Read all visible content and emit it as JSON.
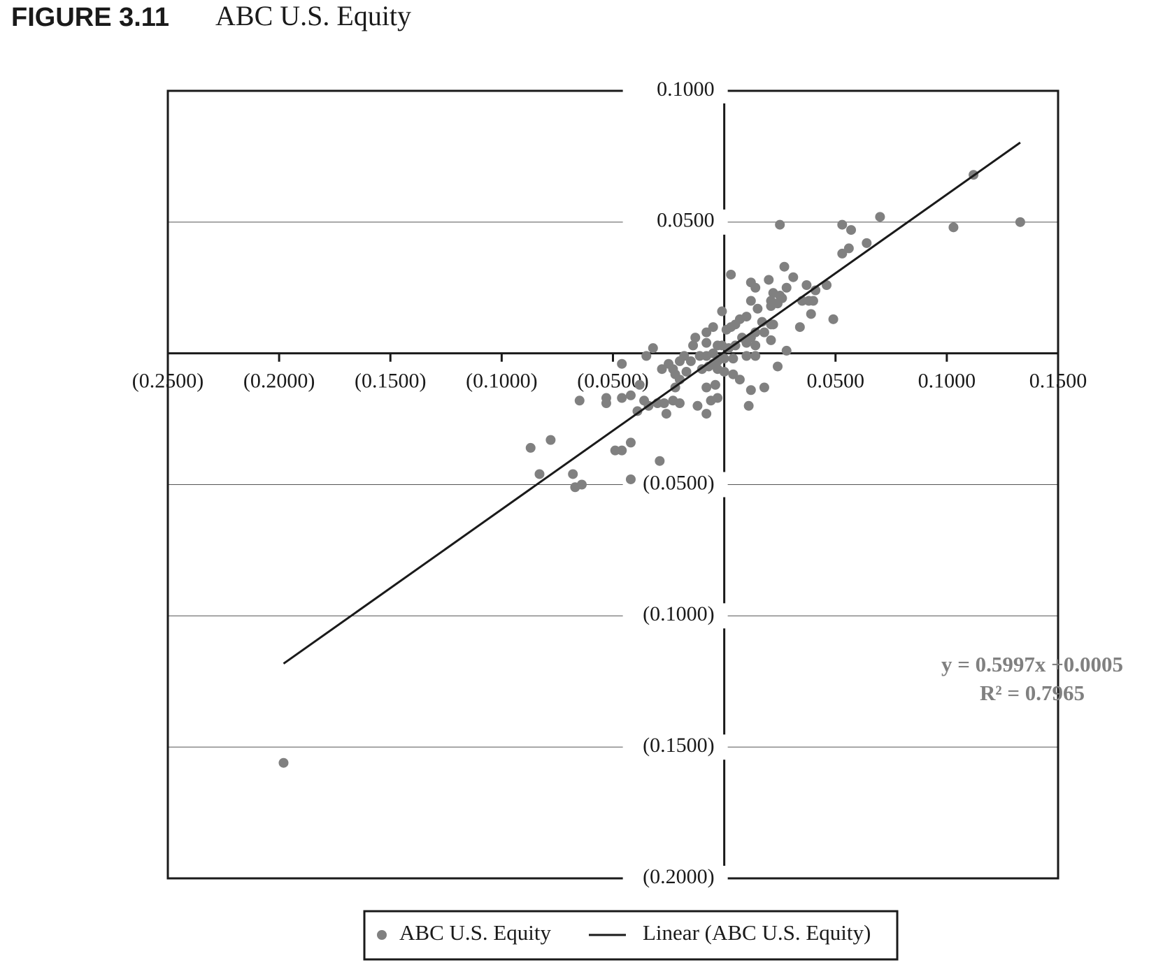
{
  "chart_data": {
    "type": "scatter",
    "figure_label": "FIGURE 3.11",
    "title": "ABC U.S. Equity",
    "xlim": [
      -0.25,
      0.15
    ],
    "ylim": [
      -0.2,
      0.1
    ],
    "xticks": [
      {
        "value": -0.25,
        "label": "(0.2500)"
      },
      {
        "value": -0.2,
        "label": "(0.2000)"
      },
      {
        "value": -0.15,
        "label": "(0.1500)"
      },
      {
        "value": -0.1,
        "label": "(0.1000)"
      },
      {
        "value": -0.05,
        "label": "(0.0500)"
      },
      {
        "value": 0.05,
        "label": "0.0500"
      },
      {
        "value": 0.1,
        "label": "0.1000"
      },
      {
        "value": 0.15,
        "label": "0.1500"
      }
    ],
    "yticks": [
      {
        "value": 0.1,
        "label": "0.1000"
      },
      {
        "value": 0.05,
        "label": "0.0500"
      },
      {
        "value": -0.05,
        "label": "(0.0500)"
      },
      {
        "value": -0.1,
        "label": "(0.1000)"
      },
      {
        "value": -0.15,
        "label": "(0.1500)"
      },
      {
        "value": -0.2,
        "label": "(0.2000)"
      }
    ],
    "grid": true,
    "legend": "bottom",
    "series": [
      {
        "name": "ABC U.S. Equity",
        "color": "#808080",
        "x": [
          -0.198,
          0.133,
          0.112,
          0.103,
          0.07,
          0.025,
          0.053,
          0.057,
          0.064,
          0.056,
          0.053,
          0.027,
          0.003,
          0.012,
          0.02,
          0.031,
          0.014,
          0.028,
          0.037,
          0.046,
          0.041,
          0.022,
          0.025,
          0.021,
          0.026,
          0.035,
          0.038,
          0.04,
          0.012,
          0.021,
          0.024,
          0.015,
          0.039,
          0.049,
          -0.001,
          0.034,
          0.017,
          0.01,
          0.007,
          0.022,
          0.021,
          0.005,
          0.003,
          0.014,
          0.018,
          0.021,
          0.012,
          0.008,
          0.001,
          -0.005,
          -0.008,
          -0.013,
          -0.008,
          -0.014,
          -0.003,
          -0.001,
          0.002,
          0.005,
          0.01,
          0.014,
          0.01,
          0.014,
          0.028,
          0.004,
          0.0,
          -0.003,
          -0.005,
          -0.008,
          -0.011,
          -0.015,
          -0.02,
          -0.018,
          -0.032,
          -0.035,
          -0.046,
          -0.025,
          -0.028,
          -0.023,
          -0.022,
          -0.017,
          -0.01,
          -0.007,
          -0.005,
          -0.003,
          0.0,
          0.004,
          0.007,
          0.012,
          0.018,
          0.024,
          -0.008,
          -0.004,
          -0.02,
          -0.022,
          -0.038,
          -0.042,
          -0.046,
          -0.053,
          -0.053,
          -0.065,
          -0.036,
          -0.034,
          -0.039,
          -0.03,
          -0.027,
          -0.023,
          -0.02,
          -0.026,
          -0.012,
          -0.006,
          -0.003,
          -0.008,
          0.011,
          -0.049,
          -0.046,
          -0.042,
          -0.087,
          -0.078,
          -0.029,
          -0.068,
          -0.083,
          -0.064,
          -0.067,
          -0.042
        ],
        "y": [
          -0.156,
          0.05,
          0.068,
          0.048,
          0.052,
          0.049,
          0.049,
          0.047,
          0.042,
          0.04,
          0.038,
          0.033,
          0.03,
          0.027,
          0.028,
          0.029,
          0.025,
          0.025,
          0.026,
          0.026,
          0.024,
          0.023,
          0.022,
          0.02,
          0.021,
          0.02,
          0.02,
          0.02,
          0.02,
          0.018,
          0.019,
          0.017,
          0.015,
          0.013,
          0.016,
          0.01,
          0.012,
          0.014,
          0.013,
          0.011,
          0.011,
          0.011,
          0.01,
          0.008,
          0.008,
          0.005,
          0.006,
          0.006,
          0.009,
          0.01,
          0.008,
          0.006,
          0.004,
          0.003,
          0.003,
          0.003,
          0.002,
          0.003,
          0.004,
          0.003,
          -0.001,
          -0.001,
          0.001,
          -0.002,
          -0.002,
          -0.003,
          0.0,
          -0.001,
          -0.001,
          -0.003,
          -0.003,
          -0.001,
          0.002,
          -0.001,
          -0.004,
          -0.004,
          -0.006,
          -0.006,
          -0.008,
          -0.007,
          -0.006,
          -0.005,
          -0.004,
          -0.006,
          -0.007,
          -0.008,
          -0.01,
          -0.014,
          -0.013,
          -0.005,
          -0.013,
          -0.012,
          -0.01,
          -0.013,
          -0.012,
          -0.016,
          -0.017,
          -0.017,
          -0.019,
          -0.018,
          -0.018,
          -0.02,
          -0.022,
          -0.019,
          -0.019,
          -0.018,
          -0.019,
          -0.023,
          -0.02,
          -0.018,
          -0.017,
          -0.023,
          -0.02,
          -0.037,
          -0.037,
          -0.034,
          -0.036,
          -0.033,
          -0.041,
          -0.046,
          -0.046,
          -0.05,
          -0.051,
          -0.048
        ]
      }
    ],
    "trendline": {
      "name": "Linear (ABC U.S. Equity)",
      "color": "#1a1a1a",
      "x": [
        -0.198,
        0.133
      ],
      "y": [
        -0.1182,
        0.0803
      ]
    },
    "annotations": [
      "y = 0.5997x +0.0005",
      "R² = 0.7965"
    ]
  }
}
